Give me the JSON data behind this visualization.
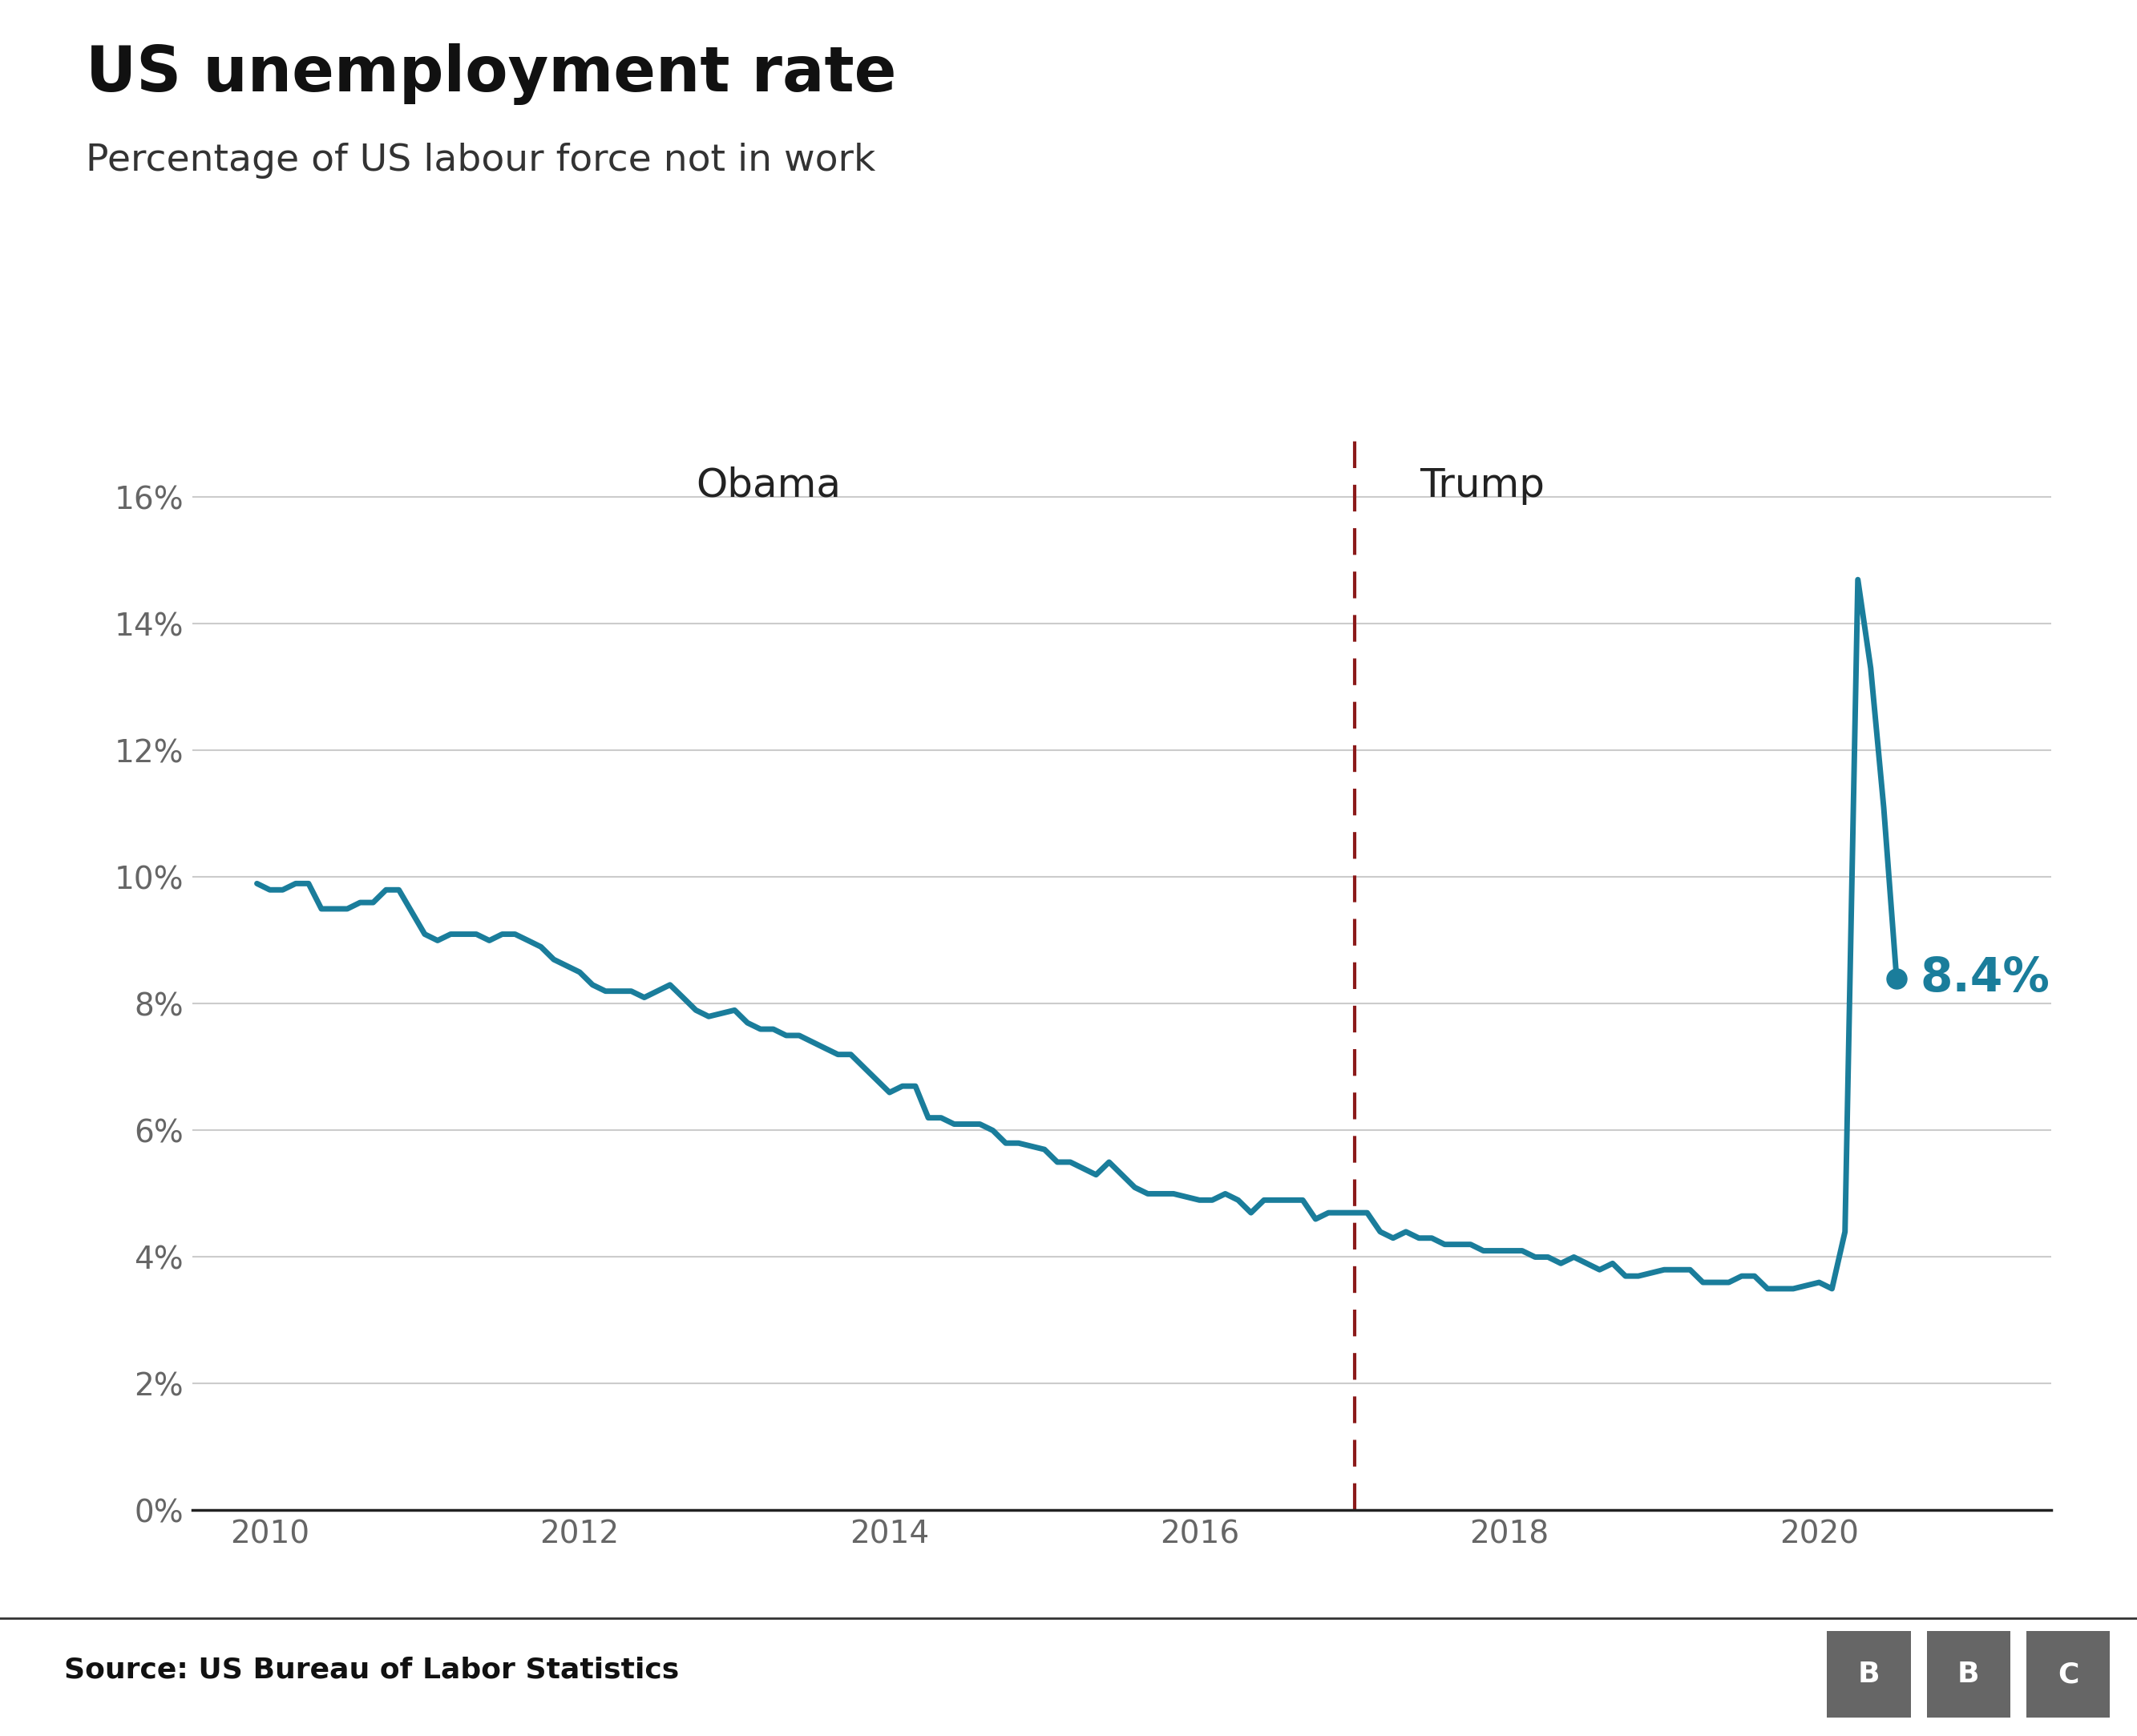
{
  "title": "US unemployment rate",
  "subtitle": "Percentage of US labour force not in work",
  "source": "Source: US Bureau of Labor Statistics",
  "line_color": "#1a7d9b",
  "dashed_line_color": "#8b1a1a",
  "background_color": "#ffffff",
  "title_fontsize": 56,
  "subtitle_fontsize": 34,
  "annotation_label": "8.4%",
  "annotation_color": "#1a7d9b",
  "obama_label": "Obama",
  "trump_label": "Trump",
  "divider_x": 2017.0,
  "ylim": [
    0,
    17
  ],
  "yticks": [
    0,
    2,
    4,
    6,
    8,
    10,
    12,
    14,
    16
  ],
  "ytick_labels": [
    "0%",
    "2%",
    "4%",
    "6%",
    "8%",
    "10%",
    "12%",
    "14%",
    "16%"
  ],
  "bbc_box_color": "#666666",
  "data": {
    "dates": [
      2009.917,
      2010.0,
      2010.083,
      2010.167,
      2010.25,
      2010.333,
      2010.417,
      2010.5,
      2010.583,
      2010.667,
      2010.75,
      2010.833,
      2011.0,
      2011.083,
      2011.167,
      2011.25,
      2011.333,
      2011.417,
      2011.5,
      2011.583,
      2011.667,
      2011.75,
      2011.833,
      2012.0,
      2012.083,
      2012.167,
      2012.25,
      2012.333,
      2012.417,
      2012.5,
      2012.583,
      2012.667,
      2012.75,
      2012.833,
      2013.0,
      2013.083,
      2013.167,
      2013.25,
      2013.333,
      2013.417,
      2013.5,
      2013.583,
      2013.667,
      2013.75,
      2013.833,
      2014.0,
      2014.083,
      2014.167,
      2014.25,
      2014.333,
      2014.417,
      2014.5,
      2014.583,
      2014.667,
      2014.75,
      2014.833,
      2015.0,
      2015.083,
      2015.167,
      2015.25,
      2015.333,
      2015.417,
      2015.5,
      2015.583,
      2015.667,
      2015.75,
      2015.833,
      2016.0,
      2016.083,
      2016.167,
      2016.25,
      2016.333,
      2016.417,
      2016.5,
      2016.583,
      2016.667,
      2016.75,
      2016.833,
      2017.0,
      2017.083,
      2017.167,
      2017.25,
      2017.333,
      2017.417,
      2017.5,
      2017.583,
      2017.667,
      2017.75,
      2017.833,
      2018.0,
      2018.083,
      2018.167,
      2018.25,
      2018.333,
      2018.417,
      2018.5,
      2018.583,
      2018.667,
      2018.75,
      2018.833,
      2019.0,
      2019.083,
      2019.167,
      2019.25,
      2019.333,
      2019.417,
      2019.5,
      2019.583,
      2019.667,
      2019.75,
      2019.833,
      2020.0,
      2020.083,
      2020.167,
      2020.25,
      2020.333,
      2020.417,
      2020.5
    ],
    "values": [
      9.9,
      9.8,
      9.8,
      9.9,
      9.9,
      9.5,
      9.5,
      9.5,
      9.6,
      9.6,
      9.8,
      9.8,
      9.1,
      9.0,
      9.1,
      9.1,
      9.1,
      9.0,
      9.1,
      9.1,
      9.0,
      8.9,
      8.7,
      8.5,
      8.3,
      8.2,
      8.2,
      8.2,
      8.1,
      8.2,
      8.3,
      8.1,
      7.9,
      7.8,
      7.9,
      7.7,
      7.6,
      7.6,
      7.5,
      7.5,
      7.4,
      7.3,
      7.2,
      7.2,
      7.0,
      6.6,
      6.7,
      6.7,
      6.2,
      6.2,
      6.1,
      6.1,
      6.1,
      6.0,
      5.8,
      5.8,
      5.7,
      5.5,
      5.5,
      5.4,
      5.3,
      5.5,
      5.3,
      5.1,
      5.0,
      5.0,
      5.0,
      4.9,
      4.9,
      5.0,
      4.9,
      4.7,
      4.9,
      4.9,
      4.9,
      4.9,
      4.6,
      4.7,
      4.7,
      4.7,
      4.4,
      4.3,
      4.4,
      4.3,
      4.3,
      4.2,
      4.2,
      4.2,
      4.1,
      4.1,
      4.1,
      4.0,
      4.0,
      3.9,
      4.0,
      3.9,
      3.8,
      3.9,
      3.7,
      3.7,
      3.8,
      3.8,
      3.8,
      3.6,
      3.6,
      3.6,
      3.7,
      3.7,
      3.5,
      3.5,
      3.5,
      3.6,
      3.5,
      4.4,
      14.7,
      13.3,
      11.1,
      8.4
    ]
  },
  "last_point_x": 2020.5,
  "last_point_y": 8.4,
  "xlim": [
    2009.5,
    2021.5
  ],
  "xticks": [
    2010,
    2012,
    2014,
    2016,
    2018,
    2020
  ],
  "tick_color": "#666666"
}
